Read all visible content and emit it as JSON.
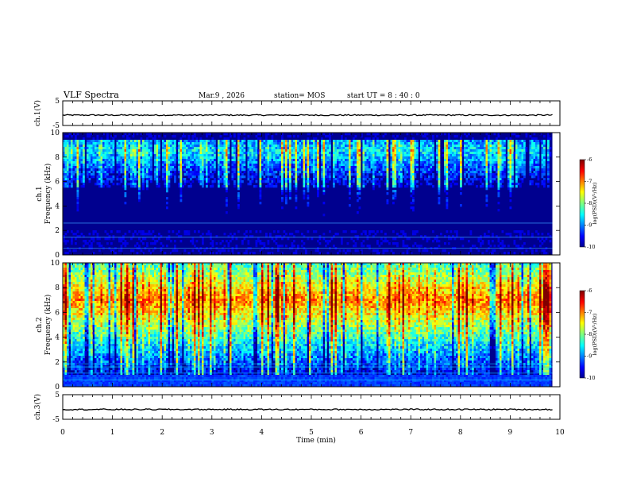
{
  "header": {
    "title": "VLF Spectra",
    "date": "Mar.9  , 2026",
    "station": "station= MOS",
    "start": "start  UT  =   8  : 40 : 0"
  },
  "chart_data": [
    {
      "type": "line",
      "panel": "ch1-voltage",
      "ylabel": "ch.1(V)",
      "ylim": [
        -5,
        5
      ],
      "yticks": [
        "5",
        "-5"
      ],
      "xlim": [
        0,
        10
      ],
      "series": [
        {
          "x": [
            0,
            10
          ],
          "values": [
            -0.8,
            -0.8
          ]
        }
      ]
    },
    {
      "type": "heatmap",
      "panel": "ch1-spectrogram",
      "ylabel": "ch.1\nFrequency (kHz)",
      "ylim": [
        0,
        10
      ],
      "yticks": [
        "0",
        "2",
        "4",
        "6",
        "8",
        "10"
      ],
      "xlim": [
        0,
        9.85
      ],
      "band": {
        "low_khz": 2.0,
        "high_khz": 9.5,
        "peak_khz": 8.5,
        "level": 0.35
      },
      "colorbar": {
        "label": "log(PSD)(V²/Hz)",
        "ticks": [
          "-6",
          "-7",
          "-8",
          "-9",
          "-10"
        ],
        "range": [
          -10,
          -6
        ]
      }
    },
    {
      "type": "heatmap",
      "panel": "ch2-spectrogram",
      "ylabel": "ch.2\nFrequency (kHz)",
      "ylim": [
        0,
        10
      ],
      "yticks": [
        "0",
        "2",
        "4",
        "6",
        "8",
        "10"
      ],
      "xlim": [
        0,
        9.85
      ],
      "band": {
        "low_khz": 1.0,
        "high_khz": 10.0,
        "peak_khz": 7.0,
        "level": 0.75
      },
      "colorbar": {
        "label": "log(PSD)(V²/Hz)",
        "ticks": [
          "-6",
          "-7",
          "-8",
          "-9",
          "-10"
        ],
        "range": [
          -10,
          -6
        ]
      }
    },
    {
      "type": "line",
      "panel": "ch3-voltage",
      "ylabel": "ch.3(V)",
      "ylim": [
        -5,
        5
      ],
      "yticks": [
        "5",
        "-5"
      ],
      "xlim": [
        0,
        10
      ],
      "series": [
        {
          "x": [
            0,
            10
          ],
          "values": [
            -1.0,
            -1.0
          ]
        }
      ]
    }
  ],
  "xaxis": {
    "label": "Time  (min)",
    "ticks": [
      "0",
      "1",
      "2",
      "3",
      "4",
      "5",
      "6",
      "7",
      "8",
      "9",
      "10"
    ]
  },
  "colors": {
    "jet_stops": [
      "#00008f",
      "#0000ff",
      "#00ffff",
      "#7fff7f",
      "#ffff00",
      "#ff0000",
      "#7f0000"
    ]
  }
}
